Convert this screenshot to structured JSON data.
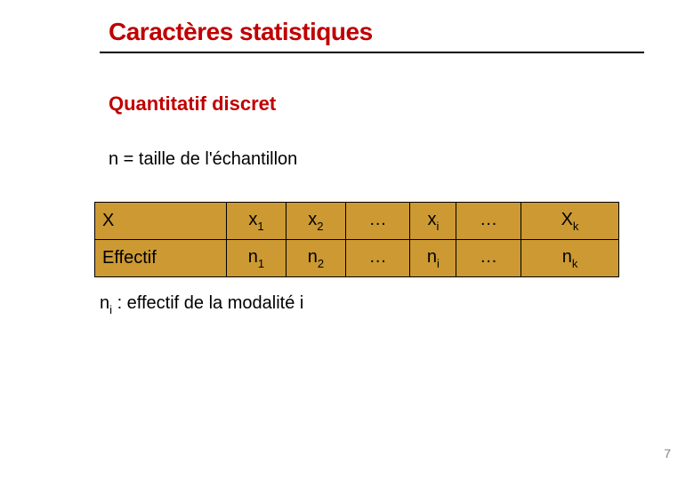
{
  "title": {
    "text": "Caractères statistiques",
    "color": "#c00000",
    "rule_color": "#000000"
  },
  "subtitle": {
    "text": "Quantitatif discret",
    "color": "#c00000"
  },
  "equation": "n = taille de l'échantillon",
  "table": {
    "fill_color": "#cc9933",
    "border_color": "#000000",
    "rows": [
      {
        "head": "X",
        "cells": [
          {
            "base": "x",
            "sub": "1"
          },
          {
            "base": "x",
            "sub": "2"
          },
          {
            "base": "…",
            "sub": ""
          },
          {
            "base": "x",
            "sub": "i"
          },
          {
            "base": "…",
            "sub": ""
          },
          {
            "base": "X",
            "sub": "k"
          }
        ]
      },
      {
        "head": "Effectif",
        "cells": [
          {
            "base": "n",
            "sub": "1"
          },
          {
            "base": "n",
            "sub": "2"
          },
          {
            "base": "…",
            "sub": ""
          },
          {
            "base": "n",
            "sub": "i"
          },
          {
            "base": "…",
            "sub": ""
          },
          {
            "base": "n",
            "sub": "k"
          }
        ]
      }
    ]
  },
  "legend": {
    "base": "n",
    "sub": "i",
    "text": " : effectif de la modalité i"
  },
  "page_number": "7"
}
